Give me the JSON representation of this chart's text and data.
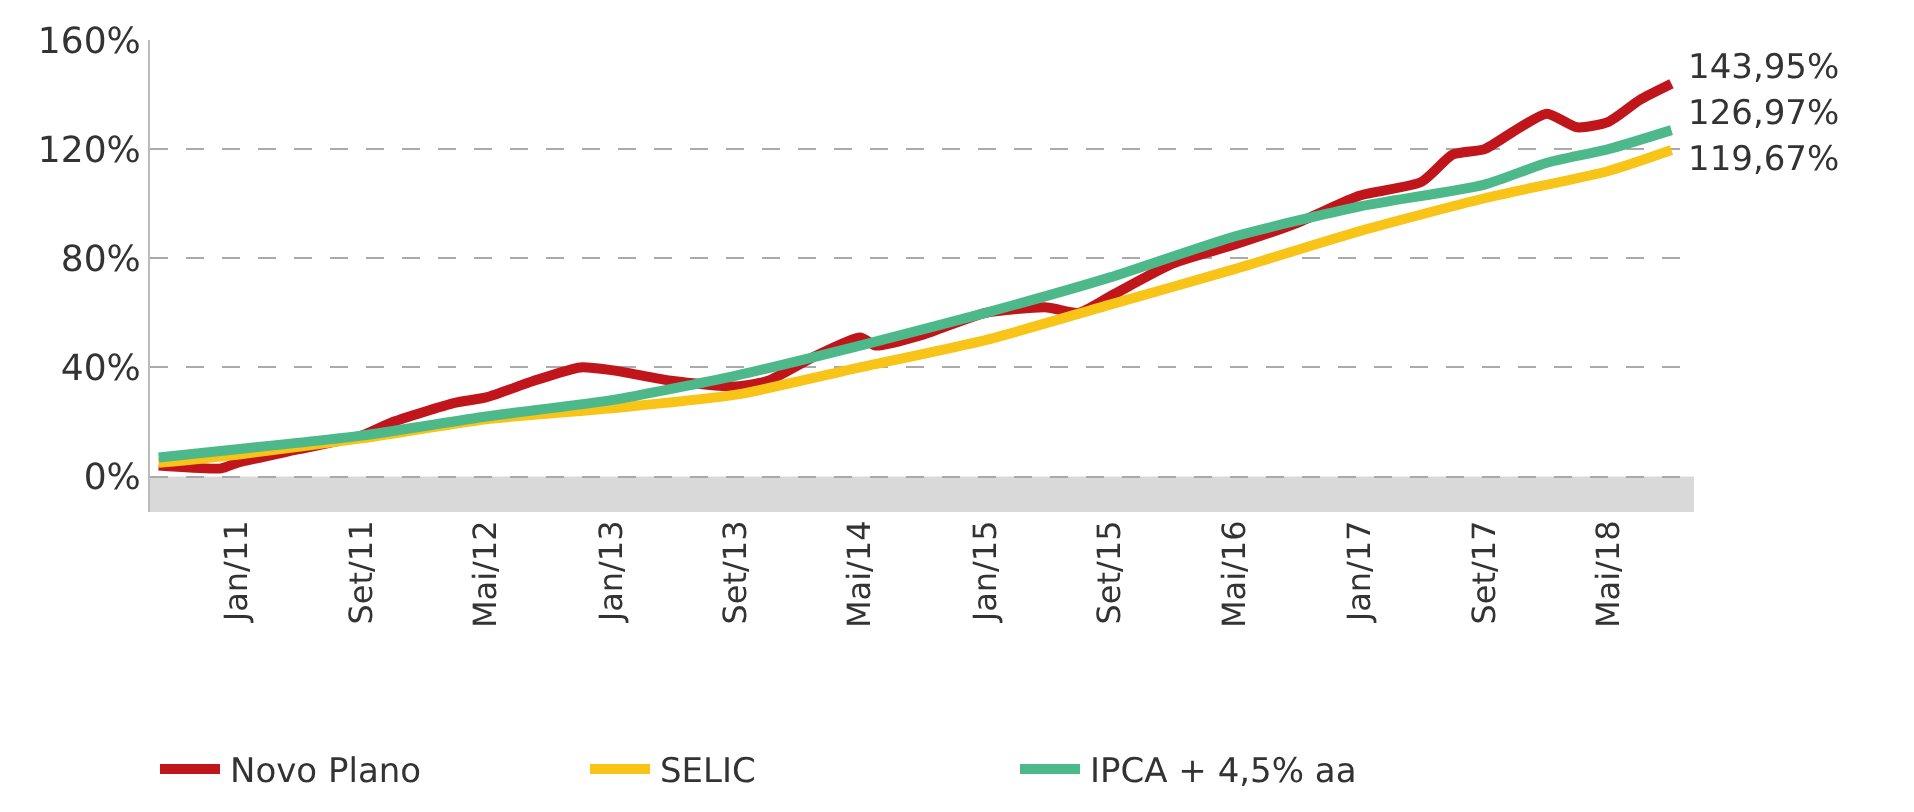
{
  "chart_data": {
    "type": "line",
    "series": [
      {
        "name": "Novo Plano",
        "color": "#c0151b",
        "x": [
          "2010-08",
          "2010-12",
          "2011-01",
          "2011-05",
          "2011-09",
          "2011-11",
          "2012-03",
          "2012-05",
          "2012-08",
          "2012-11",
          "2013-01",
          "2013-05",
          "2013-09",
          "2013-11",
          "2014-02",
          "2014-05",
          "2014-06",
          "2014-09",
          "2015-01",
          "2015-05",
          "2015-07",
          "2015-09",
          "2016-01",
          "2016-05",
          "2016-09",
          "2017-01",
          "2017-05",
          "2017-07",
          "2017-09",
          "2017-11",
          "2018-01",
          "2018-03",
          "2018-05",
          "2018-07",
          "2018-09"
        ],
        "values": [
          4,
          3,
          5,
          10,
          15,
          20,
          27,
          29,
          35,
          40,
          39,
          35,
          33,
          35,
          44,
          51,
          48,
          52,
          60,
          62,
          60,
          66,
          78,
          85,
          93,
          103,
          108,
          118,
          120,
          127,
          133,
          128,
          130,
          138,
          143.95
        ]
      },
      {
        "name": "SELIC",
        "color": "#f7c417",
        "x": [
          "2010-08",
          "2011-01",
          "2011-09",
          "2012-05",
          "2013-01",
          "2013-09",
          "2014-05",
          "2015-01",
          "2015-09",
          "2016-05",
          "2017-01",
          "2017-09",
          "2018-05",
          "2018-09"
        ],
        "values": [
          5,
          8,
          14,
          21,
          25,
          30,
          40,
          50,
          63,
          76,
          90,
          102,
          112,
          119.67
        ]
      },
      {
        "name": "IPCA + 4,5% aa",
        "color": "#4db98a",
        "x": [
          "2010-08",
          "2011-01",
          "2011-09",
          "2012-05",
          "2013-01",
          "2013-09",
          "2014-05",
          "2015-01",
          "2015-09",
          "2016-05",
          "2017-01",
          "2017-09",
          "2018-01",
          "2018-05",
          "2018-09"
        ],
        "values": [
          7,
          10,
          15,
          22,
          28,
          37,
          48,
          60,
          73,
          88,
          99,
          107,
          115,
          120,
          126.97
        ]
      }
    ],
    "annotations": [
      {
        "text": "143,95%",
        "x": "2018-09",
        "y": 143.95
      },
      {
        "text": "126,97%",
        "x": "2018-09",
        "y": 126.97
      },
      {
        "text": "119,67%",
        "x": "2018-09",
        "y": 119.67
      }
    ],
    "xlim": [
      "2010-07-15",
      "2018-10-15"
    ],
    "xticks": [
      {
        "value": "2011-01",
        "label": "Jan/11"
      },
      {
        "value": "2011-09",
        "label": "Set/11"
      },
      {
        "value": "2012-05",
        "label": "Mai/12"
      },
      {
        "value": "2013-01",
        "label": "Jan/13"
      },
      {
        "value": "2013-09",
        "label": "Set/13"
      },
      {
        "value": "2014-05",
        "label": "Mai/14"
      },
      {
        "value": "2015-01",
        "label": "Jan/15"
      },
      {
        "value": "2015-09",
        "label": "Set/15"
      },
      {
        "value": "2016-05",
        "label": "Mai/16"
      },
      {
        "value": "2017-01",
        "label": "Jan/17"
      },
      {
        "value": "2017-09",
        "label": "Set/17"
      },
      {
        "value": "2018-05",
        "label": "Mai/18"
      }
    ],
    "ylim": [
      -13,
      160
    ],
    "yticks": [
      {
        "value": 0,
        "label": "0%"
      },
      {
        "value": 40,
        "label": "40%"
      },
      {
        "value": 80,
        "label": "80%"
      },
      {
        "value": 120,
        "label": "120%"
      },
      {
        "value": 160,
        "label": "160%"
      }
    ],
    "bands": [
      {
        "axis": "y",
        "from": -13,
        "to": 0,
        "color": "#d9d9d9"
      }
    ],
    "grid": "y",
    "legend": "bottom",
    "marker": "none",
    "line_style": "solid"
  }
}
